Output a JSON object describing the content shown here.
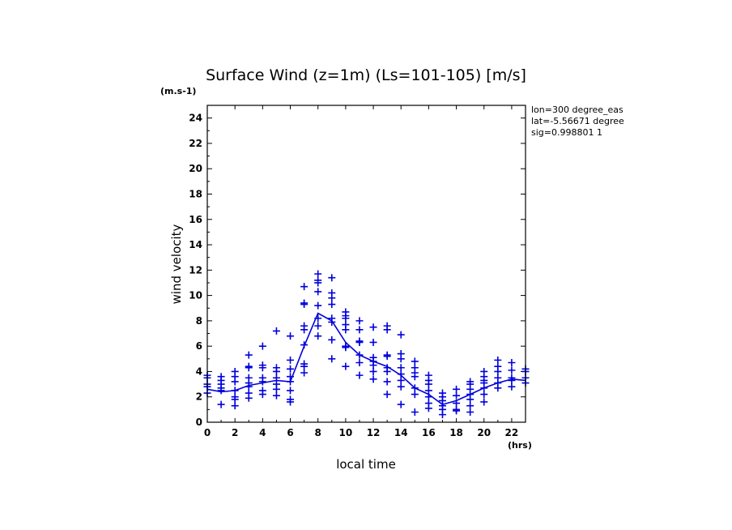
{
  "chart_data": {
    "type": "scatter",
    "title": "Surface Wind (z=1m) (Ls=101-105) [m/s]",
    "y_unit": "(m.s-1)",
    "x_unit": "(hrs)",
    "xlabel": "local time",
    "ylabel": "wind velocity",
    "xlim": [
      0,
      23
    ],
    "ylim": [
      0,
      25
    ],
    "xticks": [
      0,
      2,
      4,
      6,
      8,
      10,
      12,
      14,
      16,
      18,
      20,
      22
    ],
    "yticks": [
      0,
      2,
      4,
      6,
      8,
      10,
      12,
      14,
      16,
      18,
      20,
      22,
      24
    ],
    "annotations": [
      "lon=300 degree_eas",
      "lat=-5.56671 degree",
      "sig=0.998801 1"
    ],
    "color": "#0000dd",
    "series": [
      {
        "type": "scatter",
        "marker": "+",
        "points": [
          [
            0,
            3.7
          ],
          [
            0,
            3.5
          ],
          [
            0,
            3.0
          ],
          [
            0,
            2.8
          ],
          [
            0,
            2.3
          ],
          [
            1,
            3.6
          ],
          [
            1,
            3.3
          ],
          [
            1,
            3.0
          ],
          [
            1,
            2.7
          ],
          [
            1,
            2.5
          ],
          [
            1,
            1.4
          ],
          [
            2,
            4.0
          ],
          [
            2,
            3.6
          ],
          [
            2,
            3.2
          ],
          [
            2,
            2.5
          ],
          [
            2,
            2.0
          ],
          [
            2,
            1.8
          ],
          [
            2,
            1.3
          ],
          [
            3,
            5.3
          ],
          [
            3,
            4.4
          ],
          [
            3,
            4.3
          ],
          [
            3,
            3.5
          ],
          [
            3,
            3.1
          ],
          [
            3,
            2.8
          ],
          [
            3,
            2.3
          ],
          [
            3,
            1.9
          ],
          [
            4,
            6.0
          ],
          [
            4,
            4.5
          ],
          [
            4,
            4.3
          ],
          [
            4,
            3.5
          ],
          [
            4,
            3.2
          ],
          [
            4,
            2.5
          ],
          [
            4,
            2.2
          ],
          [
            5,
            7.2
          ],
          [
            5,
            4.3
          ],
          [
            5,
            4.0
          ],
          [
            5,
            3.5
          ],
          [
            5,
            3.0
          ],
          [
            5,
            2.6
          ],
          [
            5,
            2.1
          ],
          [
            6,
            6.8
          ],
          [
            6,
            4.9
          ],
          [
            6,
            4.2
          ],
          [
            6,
            3.6
          ],
          [
            6,
            3.2
          ],
          [
            6,
            2.5
          ],
          [
            6,
            1.8
          ],
          [
            6,
            1.6
          ],
          [
            7,
            10.7
          ],
          [
            7,
            9.4
          ],
          [
            7,
            9.3
          ],
          [
            7,
            7.6
          ],
          [
            7,
            7.3
          ],
          [
            7,
            6.1
          ],
          [
            7,
            4.6
          ],
          [
            7,
            4.4
          ],
          [
            7,
            3.9
          ],
          [
            8,
            11.7
          ],
          [
            8,
            11.2
          ],
          [
            8,
            11.0
          ],
          [
            8,
            10.3
          ],
          [
            8,
            9.2
          ],
          [
            8,
            8.2
          ],
          [
            8,
            7.6
          ],
          [
            8,
            6.8
          ],
          [
            9,
            11.4
          ],
          [
            9,
            10.2
          ],
          [
            9,
            9.8
          ],
          [
            9,
            9.3
          ],
          [
            9,
            8.2
          ],
          [
            9,
            7.9
          ],
          [
            9,
            6.5
          ],
          [
            9,
            5.0
          ],
          [
            10,
            8.7
          ],
          [
            10,
            8.4
          ],
          [
            10,
            8.2
          ],
          [
            10,
            7.7
          ],
          [
            10,
            7.3
          ],
          [
            10,
            6.0
          ],
          [
            10,
            5.9
          ],
          [
            10,
            4.4
          ],
          [
            11,
            8.0
          ],
          [
            11,
            7.3
          ],
          [
            11,
            6.4
          ],
          [
            11,
            6.3
          ],
          [
            11,
            5.3
          ],
          [
            11,
            4.7
          ],
          [
            11,
            3.7
          ],
          [
            12,
            7.5
          ],
          [
            12,
            6.3
          ],
          [
            12,
            5.1
          ],
          [
            12,
            4.8
          ],
          [
            12,
            4.5
          ],
          [
            12,
            4.0
          ],
          [
            12,
            3.4
          ],
          [
            13,
            7.6
          ],
          [
            13,
            7.3
          ],
          [
            13,
            5.3
          ],
          [
            13,
            5.2
          ],
          [
            13,
            4.3
          ],
          [
            13,
            4.0
          ],
          [
            13,
            3.2
          ],
          [
            13,
            2.2
          ],
          [
            14,
            6.9
          ],
          [
            14,
            5.4
          ],
          [
            14,
            5.0
          ],
          [
            14,
            4.3
          ],
          [
            14,
            3.8
          ],
          [
            14,
            3.3
          ],
          [
            14,
            2.8
          ],
          [
            14,
            1.4
          ],
          [
            15,
            4.8
          ],
          [
            15,
            4.3
          ],
          [
            15,
            3.9
          ],
          [
            15,
            3.6
          ],
          [
            15,
            2.7
          ],
          [
            15,
            2.2
          ],
          [
            15,
            0.8
          ],
          [
            16,
            3.7
          ],
          [
            16,
            3.3
          ],
          [
            16,
            3.0
          ],
          [
            16,
            2.5
          ],
          [
            16,
            2.0
          ],
          [
            16,
            1.5
          ],
          [
            16,
            1.1
          ],
          [
            17,
            2.3
          ],
          [
            17,
            2.0
          ],
          [
            17,
            1.7
          ],
          [
            17,
            1.3
          ],
          [
            17,
            1.0
          ],
          [
            17,
            0.6
          ],
          [
            18,
            2.6
          ],
          [
            18,
            2.1
          ],
          [
            18,
            1.5
          ],
          [
            18,
            1.0
          ],
          [
            18,
            0.9
          ],
          [
            19,
            3.2
          ],
          [
            19,
            3.0
          ],
          [
            19,
            2.6
          ],
          [
            19,
            2.2
          ],
          [
            19,
            1.8
          ],
          [
            19,
            1.3
          ],
          [
            19,
            0.8
          ],
          [
            20,
            4.0
          ],
          [
            20,
            3.6
          ],
          [
            20,
            3.3
          ],
          [
            20,
            3.1
          ],
          [
            20,
            2.7
          ],
          [
            20,
            2.2
          ],
          [
            20,
            1.6
          ],
          [
            21,
            4.9
          ],
          [
            21,
            4.4
          ],
          [
            21,
            4.0
          ],
          [
            21,
            3.5
          ],
          [
            21,
            3.1
          ],
          [
            21,
            2.7
          ],
          [
            22,
            4.7
          ],
          [
            22,
            4.1
          ],
          [
            22,
            3.5
          ],
          [
            22,
            3.3
          ],
          [
            22,
            2.8
          ],
          [
            23,
            4.2
          ],
          [
            23,
            4.0
          ],
          [
            23,
            3.5
          ],
          [
            23,
            3.1
          ]
        ]
      },
      {
        "type": "line",
        "points": [
          [
            0,
            2.6
          ],
          [
            1,
            2.4
          ],
          [
            2,
            2.5
          ],
          [
            3,
            2.9
          ],
          [
            4,
            3.1
          ],
          [
            5,
            3.3
          ],
          [
            6,
            3.2
          ],
          [
            7,
            6.0
          ],
          [
            8,
            8.6
          ],
          [
            9,
            8.0
          ],
          [
            10,
            6.3
          ],
          [
            11,
            5.3
          ],
          [
            12,
            4.8
          ],
          [
            13,
            4.4
          ],
          [
            14,
            3.7
          ],
          [
            15,
            2.7
          ],
          [
            16,
            2.2
          ],
          [
            17,
            1.4
          ],
          [
            18,
            1.7
          ],
          [
            19,
            2.2
          ],
          [
            20,
            2.7
          ],
          [
            21,
            3.1
          ],
          [
            22,
            3.4
          ],
          [
            23,
            3.3
          ]
        ]
      }
    ]
  }
}
